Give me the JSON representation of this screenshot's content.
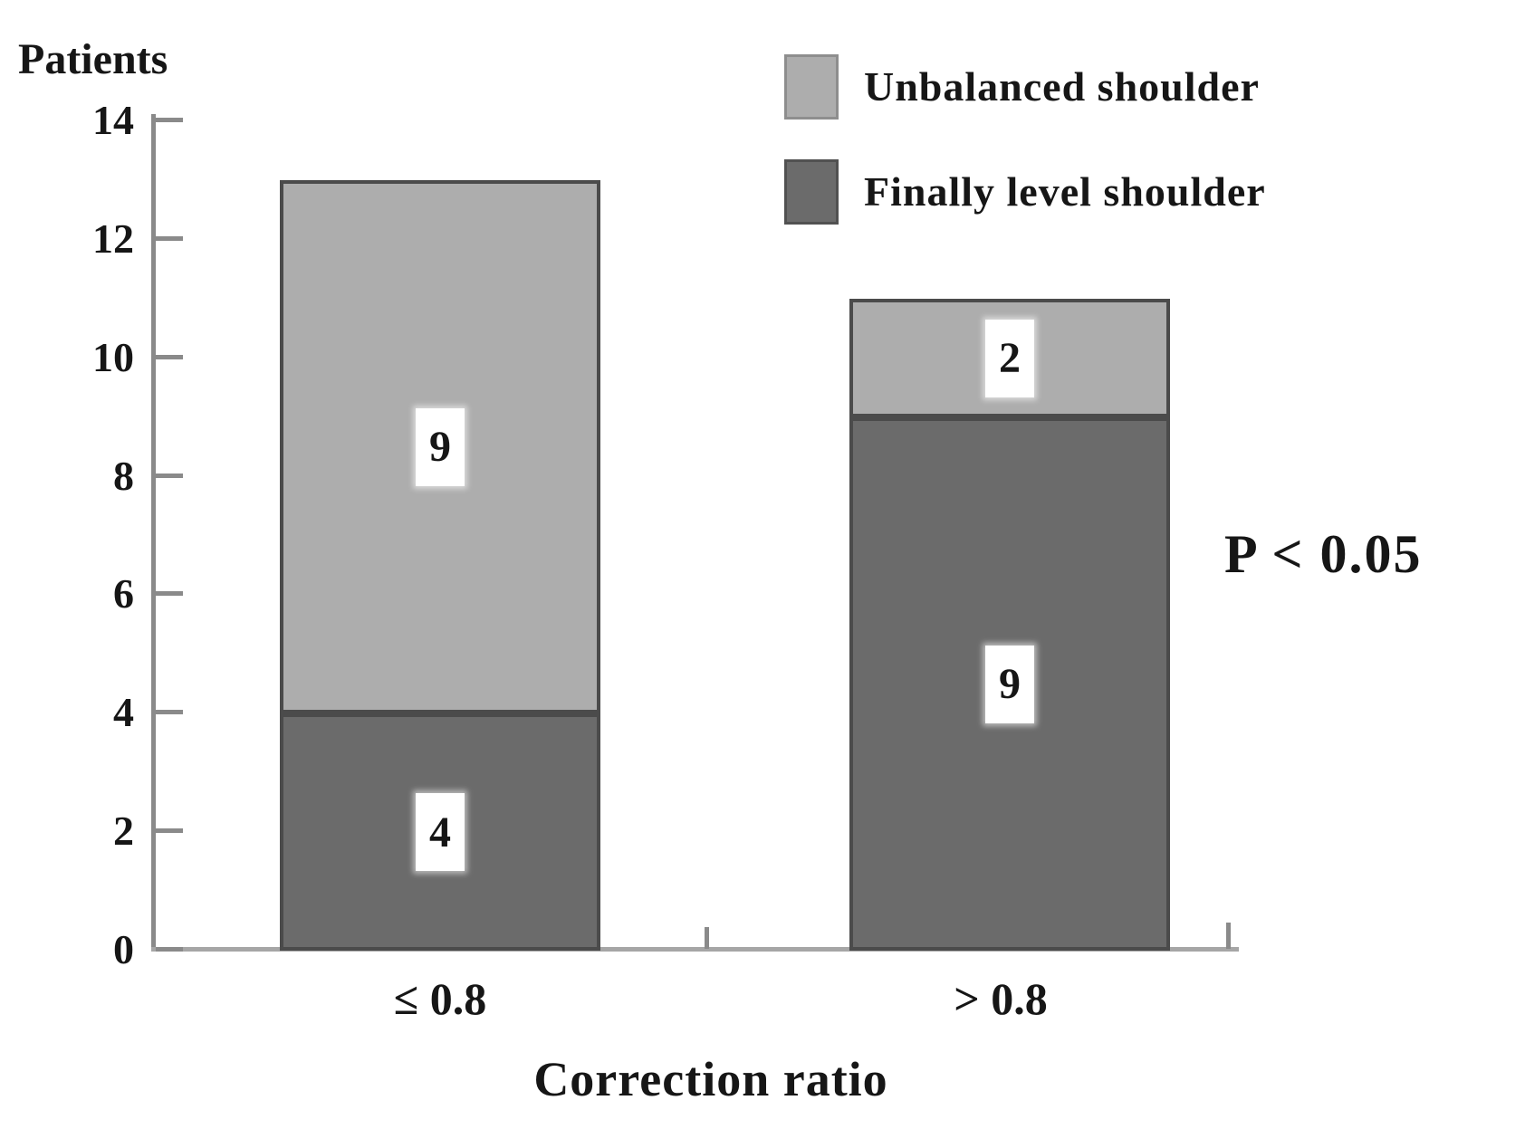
{
  "figure": {
    "y_axis_title": "Patients",
    "x_axis_title": "Correction ratio",
    "annotation": "P < 0.05"
  },
  "legend": {
    "items": [
      {
        "label": "Unbalanced shoulder",
        "color": "#adadad"
      },
      {
        "label": "Finally level shoulder",
        "color": "#6b6b6b"
      }
    ]
  },
  "chart_data": {
    "type": "bar",
    "stacked": true,
    "title": "",
    "xlabel": "Correction ratio",
    "ylabel": "Patients",
    "categories": [
      "≤ 0.8",
      "> 0.8"
    ],
    "series": [
      {
        "name": "Finally level shoulder",
        "values": [
          4,
          9
        ],
        "color": "#6b6b6b"
      },
      {
        "name": "Unbalanced shoulder",
        "values": [
          9,
          2
        ],
        "color": "#adadad"
      }
    ],
    "totals": [
      13,
      11
    ],
    "ylim": [
      0,
      14
    ],
    "yticks": [
      0,
      2,
      4,
      6,
      8,
      10,
      12,
      14
    ],
    "grid": false,
    "legend_position": "top-right",
    "annotation": "P < 0.05"
  }
}
